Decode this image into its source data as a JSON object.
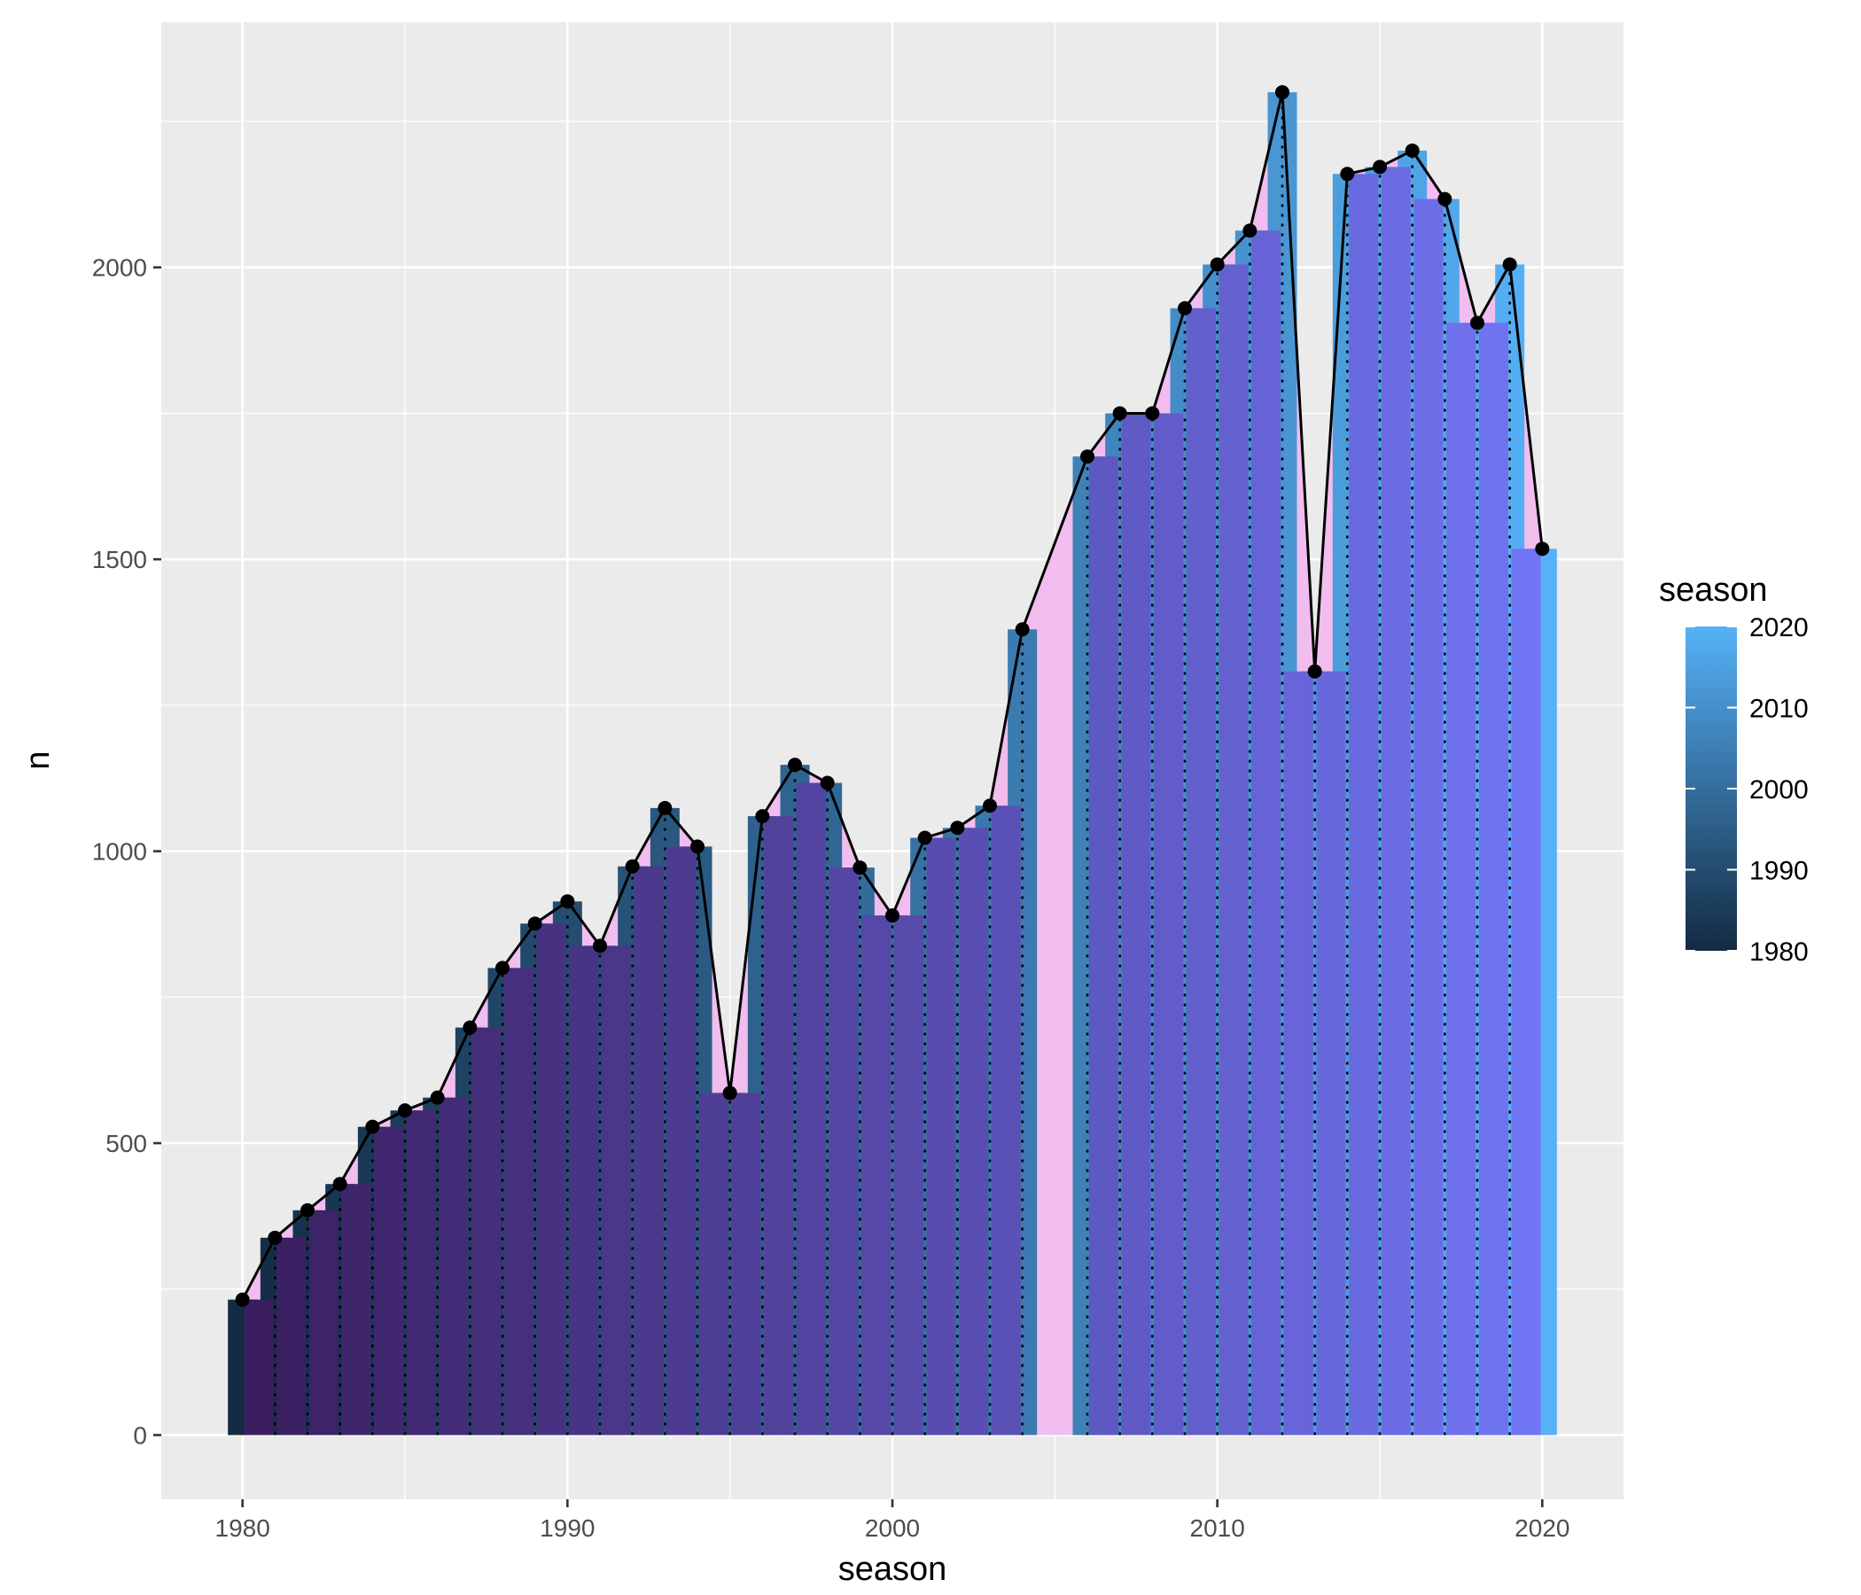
{
  "chart_data": {
    "type": "bar",
    "xlabel": "season",
    "ylabel": "n",
    "xlim": [
      1977.5,
      2022.5
    ],
    "ylim": [
      -110,
      2420
    ],
    "x_ticks": [
      1980,
      1990,
      2000,
      2010,
      2020
    ],
    "y_ticks": [
      0,
      500,
      1000,
      1500,
      2000
    ],
    "x_tick_labels": [
      "1980",
      "1990",
      "2000",
      "2010",
      "2020"
    ],
    "y_tick_labels": [
      "0",
      "500",
      "1000",
      "1500",
      "2000"
    ],
    "grid": true,
    "legend": {
      "title": "season",
      "position": "right",
      "type": "colorbar",
      "range": [
        1980,
        2020
      ],
      "labels": [
        "2020",
        "2010",
        "2000",
        "1990",
        "1980"
      ],
      "label_values": [
        2020,
        2010,
        2000,
        1990,
        1980
      ]
    },
    "colors": {
      "panel": "#ebebeb",
      "grid": "#ffffff",
      "gradient_low": "#132b43",
      "gradient_high": "#56b1f7",
      "area_fill": "#f2b8f0",
      "overlay_start": "#3a1d5e",
      "overlay_end": "#7176f5",
      "line": "#000000"
    },
    "x": [
      1980,
      1981,
      1982,
      1983,
      1984,
      1985,
      1986,
      1987,
      1988,
      1989,
      1990,
      1991,
      1992,
      1993,
      1994,
      1995,
      1996,
      1997,
      1998,
      1999,
      2000,
      2001,
      2002,
      2003,
      2004,
      2006,
      2007,
      2008,
      2009,
      2010,
      2011,
      2012,
      2013,
      2014,
      2015,
      2016,
      2017,
      2018,
      2019,
      2020
    ],
    "values": [
      232,
      338,
      385,
      430,
      528,
      556,
      578,
      698,
      800,
      876,
      914,
      838,
      974,
      1074,
      1008,
      586,
      1060,
      1148,
      1117,
      972,
      890,
      1023,
      1040,
      1078,
      1380,
      1676,
      1750,
      1750,
      1930,
      2005,
      2063,
      2300,
      1308,
      2160,
      2172,
      2200,
      2117,
      1905,
      2005,
      1518
    ]
  }
}
